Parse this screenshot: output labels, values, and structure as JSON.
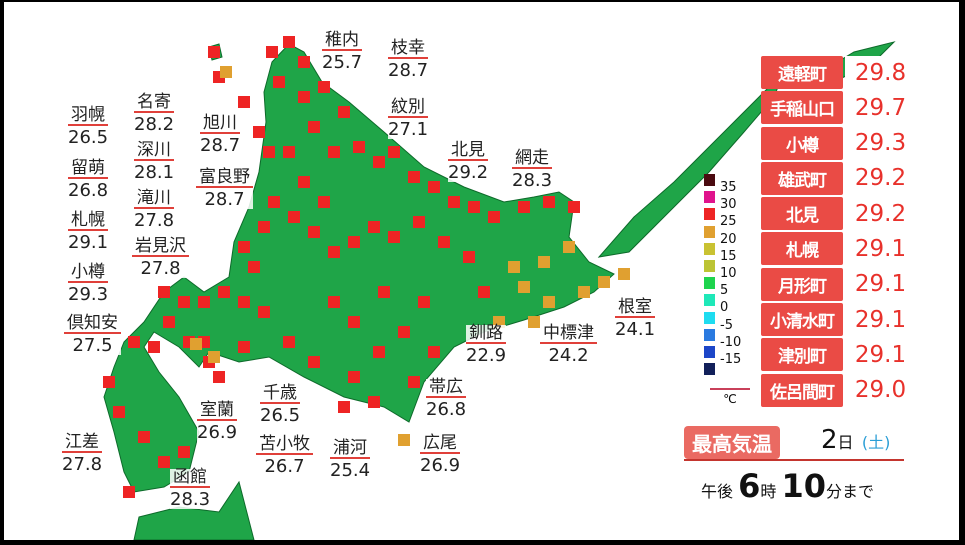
{
  "cities": [
    {
      "name": "稚内",
      "value": "25.7"
    },
    {
      "name": "枝幸",
      "value": "28.7"
    },
    {
      "name": "紋別",
      "value": "27.1"
    },
    {
      "name": "北見",
      "value": "29.2"
    },
    {
      "name": "網走",
      "value": "28.3"
    },
    {
      "name": "羽幌",
      "value": "26.5"
    },
    {
      "name": "名寄",
      "value": "28.2"
    },
    {
      "name": "深川",
      "value": "28.1"
    },
    {
      "name": "旭川",
      "value": "28.7"
    },
    {
      "name": "富良野",
      "value": "28.7"
    },
    {
      "name": "留萌",
      "value": "26.8"
    },
    {
      "name": "滝川",
      "value": "27.8"
    },
    {
      "name": "札幌",
      "value": "29.1"
    },
    {
      "name": "岩見沢",
      "value": "27.8"
    },
    {
      "name": "小樽",
      "value": "29.3"
    },
    {
      "name": "倶知安",
      "value": "27.5"
    },
    {
      "name": "釧路",
      "value": "22.9"
    },
    {
      "name": "中標津",
      "value": "24.2"
    },
    {
      "name": "根室",
      "value": "24.1"
    },
    {
      "name": "帯広",
      "value": "26.8"
    },
    {
      "name": "千歳",
      "value": "26.5"
    },
    {
      "name": "室蘭",
      "value": "26.9"
    },
    {
      "name": "苫小牧",
      "value": "26.7"
    },
    {
      "name": "浦河",
      "value": "25.4"
    },
    {
      "name": "広尾",
      "value": "26.9"
    },
    {
      "name": "江差",
      "value": "27.8"
    },
    {
      "name": "函館",
      "value": "28.3"
    }
  ],
  "ranking": [
    {
      "name": "遠軽町",
      "value": "29.8"
    },
    {
      "name": "手稲山口",
      "value": "29.7"
    },
    {
      "name": "小樽",
      "value": "29.3"
    },
    {
      "name": "雄武町",
      "value": "29.2"
    },
    {
      "name": "北見",
      "value": "29.2"
    },
    {
      "name": "札幌",
      "value": "29.1"
    },
    {
      "name": "月形町",
      "value": "29.1"
    },
    {
      "name": "小清水町",
      "value": "29.1"
    },
    {
      "name": "津別町",
      "value": "29.1"
    },
    {
      "name": "佐呂間町",
      "value": "29.0"
    }
  ],
  "legend": {
    "labels": [
      "35",
      "30",
      "25",
      "20",
      "15",
      "10",
      "5",
      "0",
      "-5",
      "-10",
      "-15"
    ],
    "unit": "℃",
    "colors": [
      "#4a0a10",
      "#e0138c",
      "#ee2424",
      "#e0a030",
      "#c9c232",
      "#bcc434",
      "#1ed44e",
      "#1ee8b8",
      "#1edcf0",
      "#2a7ae0",
      "#1c46c8",
      "#12205a"
    ]
  },
  "header": {
    "title": "最高気温",
    "day": "2",
    "day_unit": "日",
    "weekday": "(土)",
    "ampm": "午後",
    "hour": "6",
    "hour_unit": "時",
    "minute": "10",
    "minute_unit": "分まで"
  },
  "colors": {
    "land": "#1fa548",
    "marker_hot": "#ee2424",
    "marker_warm": "#e0a030",
    "accent": "#ea4b45"
  }
}
